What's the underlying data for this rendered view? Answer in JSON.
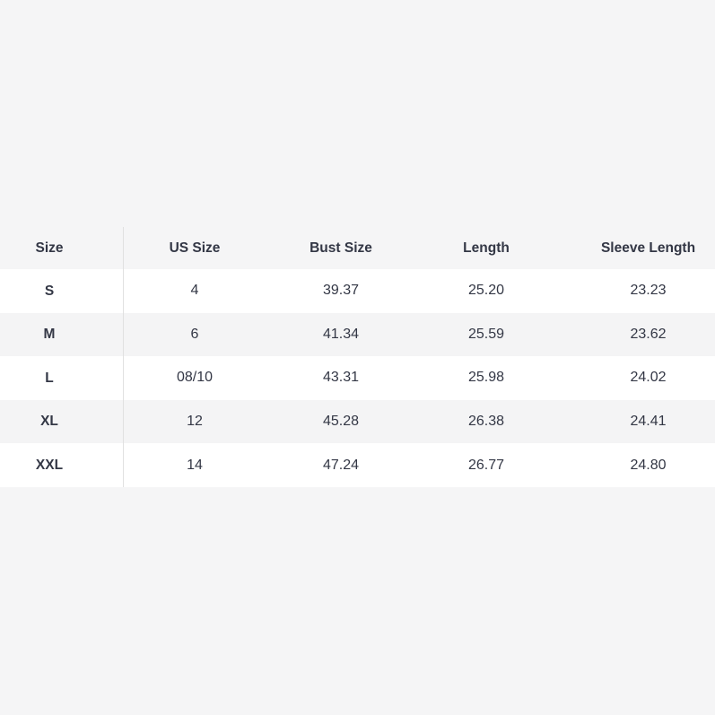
{
  "colors": {
    "page_background": "#f5f5f6",
    "row_white": "#ffffff",
    "row_gray": "#f4f4f5",
    "text": "#333745",
    "divider": "#e1e1e1"
  },
  "size_chart": {
    "columns": [
      "Size",
      "US Size",
      "Bust Size",
      "Length",
      "Sleeve Length"
    ],
    "rows": [
      [
        "S",
        "4",
        "39.37",
        "25.20",
        "23.23"
      ],
      [
        "M",
        "6",
        "41.34",
        "25.59",
        "23.62"
      ],
      [
        "L",
        "08/10",
        "43.31",
        "25.98",
        "24.02"
      ],
      [
        "XL",
        "12",
        "45.28",
        "26.38",
        "24.41"
      ],
      [
        "XXL",
        "14",
        "47.24",
        "26.77",
        "24.80"
      ]
    ]
  }
}
